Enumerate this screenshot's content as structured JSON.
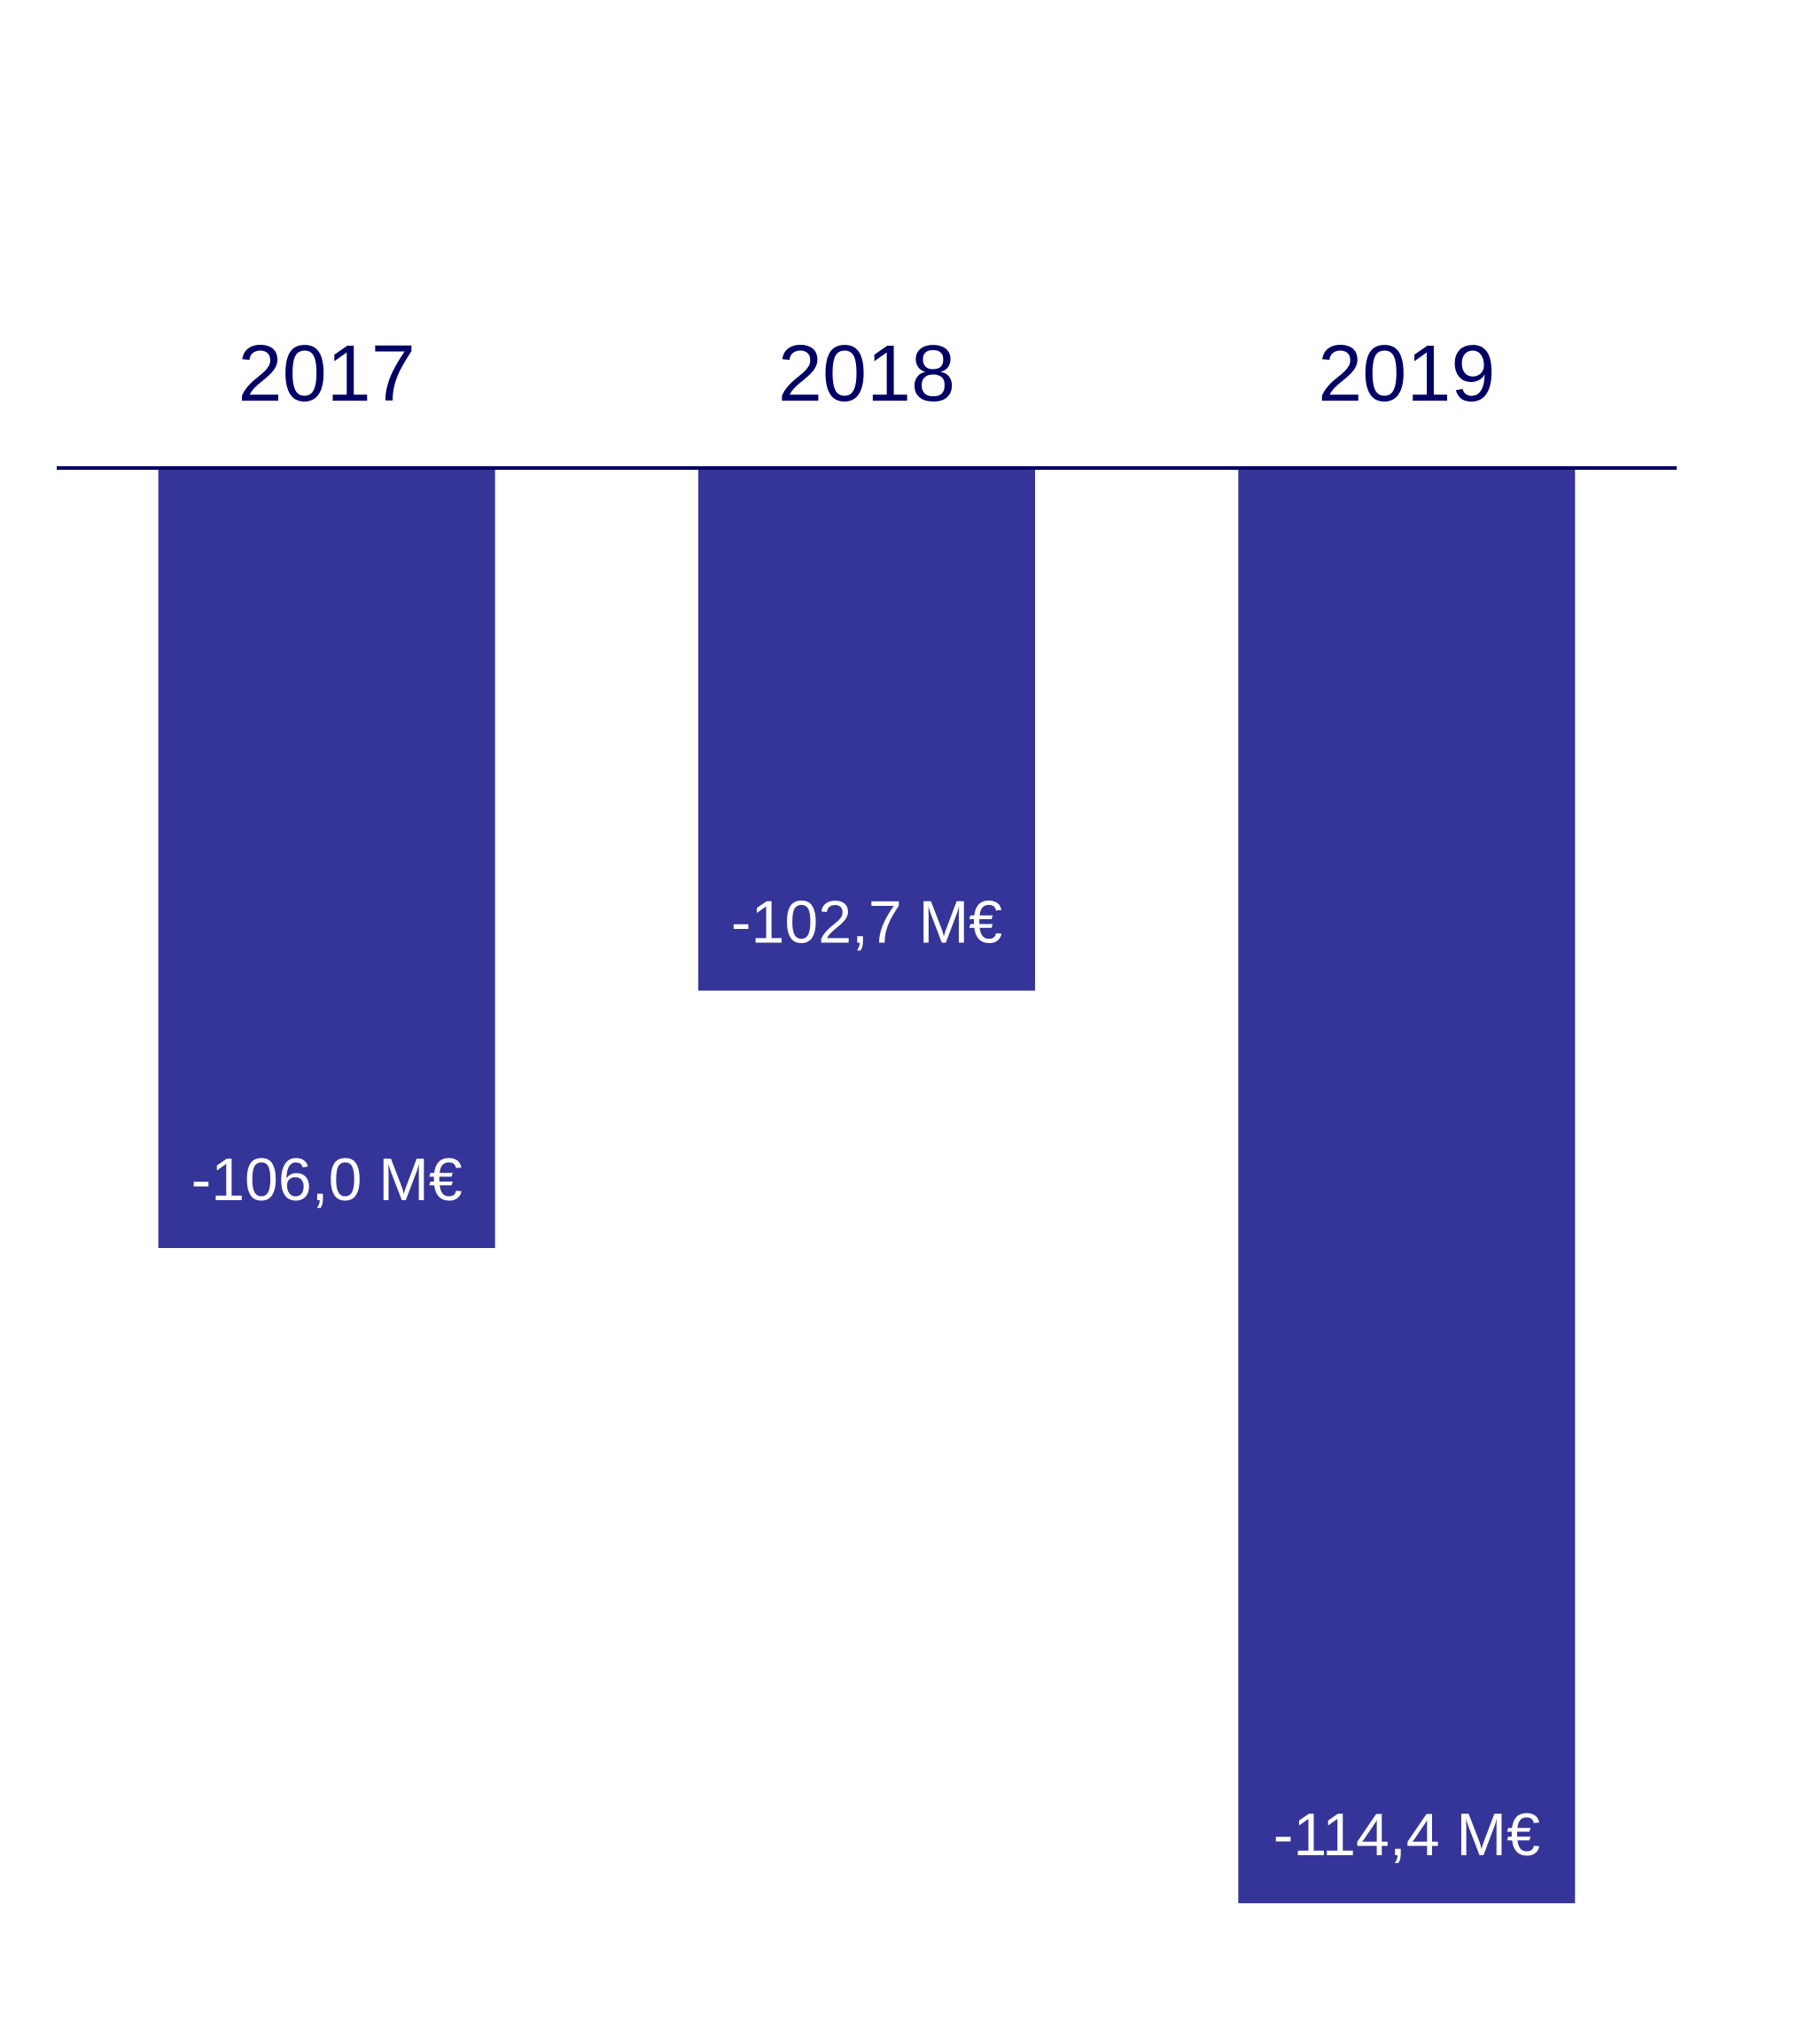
{
  "chart_data": {
    "type": "bar",
    "categories": [
      "2017",
      "2018",
      "2019"
    ],
    "values": [
      -106.0,
      -102.7,
      -114.4
    ],
    "value_labels": [
      "-106,0 M€",
      "-102,7 M€",
      "-114,4 M€"
    ],
    "color": "#343499",
    "ylim": [
      -116,
      -96
    ]
  }
}
